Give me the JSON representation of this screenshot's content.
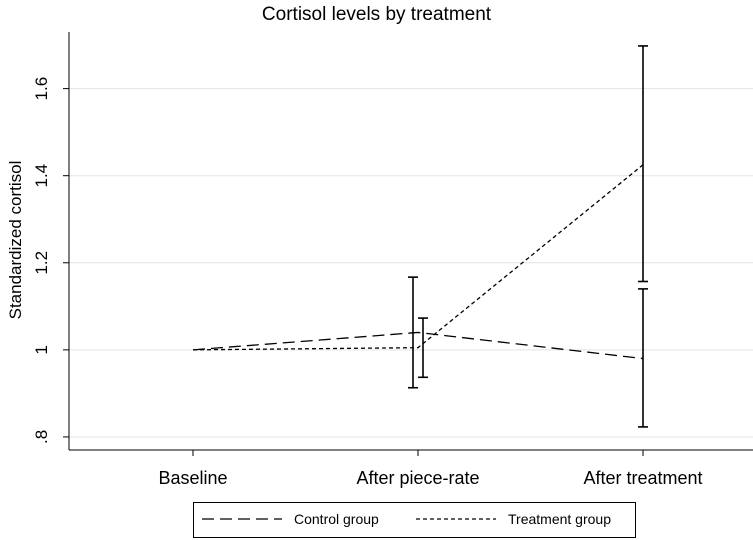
{
  "chart_data": {
    "type": "line",
    "title": "Cortisol levels by treatment",
    "xlabel": "",
    "ylabel": "Standardized cortisol",
    "categories": [
      "Baseline",
      "After piece-rate",
      "After treatment"
    ],
    "ylim": [
      0.77,
      1.73
    ],
    "yticks": [
      0.8,
      1.0,
      1.2,
      1.4,
      1.6
    ],
    "ytick_labels": [
      ".8",
      "1",
      "1.2",
      "1.4",
      "1.6"
    ],
    "grid": true,
    "legend_position": "bottom",
    "series": [
      {
        "name": "Control group",
        "dash": "long-dash",
        "values": [
          1.0,
          1.04,
          0.98
        ],
        "ci_low": [
          null,
          0.913,
          0.823
        ],
        "ci_high": [
          null,
          1.167,
          1.14
        ]
      },
      {
        "name": "Treatment group",
        "dash": "short-dash",
        "values": [
          1.0,
          1.005,
          1.425
        ],
        "ci_low": [
          null,
          0.937,
          1.157
        ],
        "ci_high": [
          null,
          1.073,
          1.698
        ]
      }
    ]
  }
}
